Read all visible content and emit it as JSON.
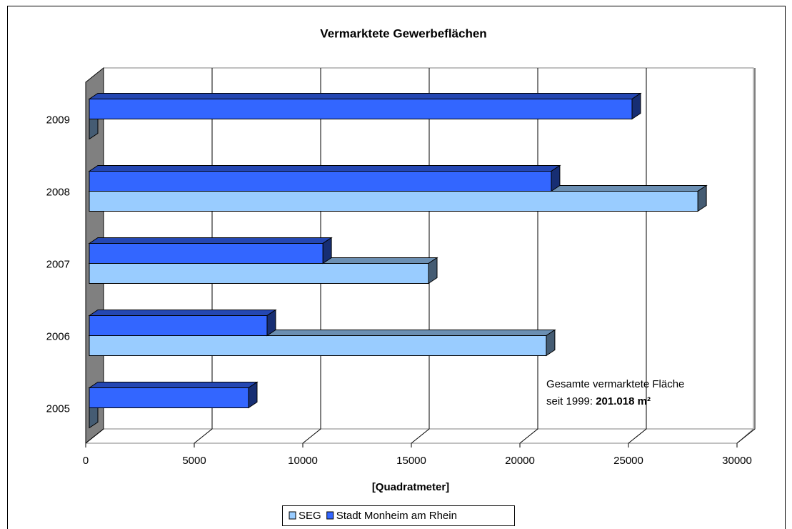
{
  "chart_data": {
    "type": "bar3d-horizontal",
    "title": "Vermarktete Gewerbeflächen",
    "categories": [
      "2009",
      "2008",
      "2007",
      "2006",
      "2005"
    ],
    "series": [
      {
        "name": "SEG",
        "color": "#99ccff",
        "values": [
          0,
          28030,
          15625,
          21050,
          0
        ]
      },
      {
        "name": "Stadt Monheim am Rhein",
        "color": "#3366ff",
        "values": [
          25000,
          21280,
          10760,
          8190,
          7335
        ]
      }
    ],
    "xlim": [
      0,
      30000
    ],
    "xticks": [
      0,
      5000,
      10000,
      15000,
      20000,
      25000,
      30000
    ],
    "xlabel": "[Quadratmeter]",
    "grid": true,
    "legend": "bottom",
    "annotation": {
      "line1": "Gesamte vermarktete Fläche",
      "line2": "seit 1999:",
      "total": "201.018 m²"
    }
  }
}
